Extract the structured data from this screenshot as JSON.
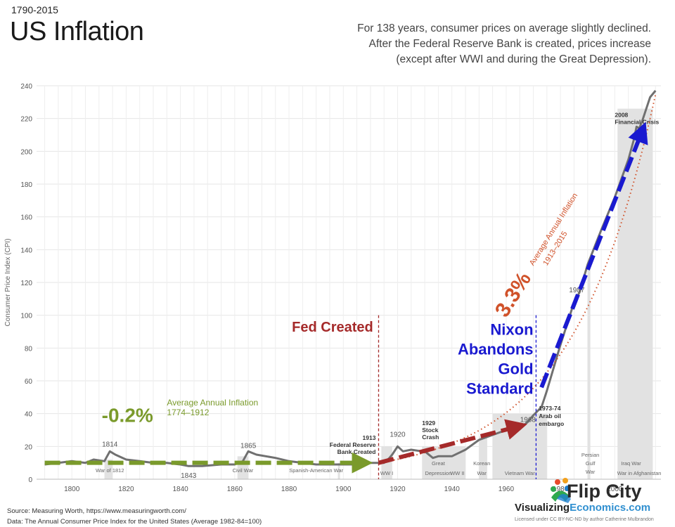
{
  "header": {
    "period": "1790-2015",
    "title": "US Inflation",
    "subtitle_lines": [
      "For 138 years, consumer prices on average slightly declined.",
      "After the Federal Reserve Bank is created, prices increase",
      "(except after WWI and during the Great Depression)."
    ]
  },
  "footer": {
    "source": "Source: Measuring Worth, https://www.measuringworth.com/",
    "data": "Data: The Annual Consumer Price Index for the United States (Average 1982-84=100)"
  },
  "brand": {
    "name": "Flip City",
    "site_prefix": "Visualizing",
    "site_suffix": "Economics.com",
    "license": "Licensed under CC BY-NC-ND by author Catherine Mulbrandon"
  },
  "colors": {
    "line": "#707070",
    "fill": "#d6d6d6",
    "green": "#7a9a2b",
    "red": "#a52a2a",
    "blue": "#1a1ad0",
    "orange": "#d0522a"
  },
  "chart_data": {
    "type": "area",
    "ylabel": "Consumer Price Index (CPI)",
    "xlim": [
      1787,
      2017
    ],
    "ylim": [
      0,
      240
    ],
    "x_ticks": [
      1800,
      1820,
      1840,
      1860,
      1880,
      1900,
      1920,
      1940,
      1960,
      1980,
      2000
    ],
    "y_ticks": [
      0,
      20,
      40,
      60,
      80,
      100,
      120,
      140,
      160,
      180,
      200,
      220,
      240
    ],
    "grid": true,
    "series": [
      {
        "x": [
          1790,
          1795,
          1800,
          1805,
          1808,
          1812,
          1814,
          1816,
          1820,
          1825,
          1830,
          1835,
          1840,
          1843,
          1848,
          1855,
          1860,
          1863,
          1865,
          1868,
          1875,
          1880,
          1885,
          1890,
          1895,
          1900,
          1905,
          1910,
          1913,
          1915,
          1917,
          1918,
          1920,
          1922,
          1925,
          1929,
          1930,
          1933,
          1935,
          1940,
          1945,
          1950,
          1955,
          1960,
          1965,
          1968,
          1970,
          1973,
          1974,
          1975,
          1980,
          1985,
          1987,
          1990,
          1995,
          2000,
          2005,
          2007,
          2008,
          2009,
          2010,
          2013,
          2015
        ],
        "y": [
          9,
          10,
          11,
          10,
          12,
          11,
          17,
          15,
          12,
          11,
          10,
          10,
          9,
          8,
          8,
          9,
          9,
          11,
          17,
          15,
          13,
          11,
          10,
          9,
          9,
          9,
          9,
          10,
          10,
          10,
          13,
          15,
          20,
          17,
          18,
          17,
          17,
          13,
          14,
          14,
          18,
          24,
          27,
          30,
          31,
          35,
          39,
          44,
          49,
          54,
          82,
          108,
          114,
          131,
          152,
          172,
          195,
          207,
          215,
          214,
          218,
          233,
          237
        ]
      }
    ],
    "annotations": [
      {
        "label": "1814",
        "x": 1814
      },
      {
        "label": "1843",
        "x": 1843
      },
      {
        "label": "1865",
        "x": 1865
      },
      {
        "label": "1913 Federal Reserve Bank Created",
        "x": 1913
      },
      {
        "label": "1920",
        "x": 1920
      },
      {
        "label": "1929 Stock Crash",
        "x": 1929
      },
      {
        "label": "1968",
        "x": 1968
      },
      {
        "label": "1973-74 Arab oil embargo",
        "x": 1973
      },
      {
        "label": "1987",
        "x": 1987
      },
      {
        "label": "2008 Financial Crisis",
        "x": 2008
      }
    ],
    "events": [
      {
        "label": "War of 1812",
        "from": 1812,
        "to": 1815
      },
      {
        "label": "Civil War",
        "from": 1861,
        "to": 1865
      },
      {
        "label": "Spanish-American War",
        "from": 1898,
        "to": 1898
      },
      {
        "label": "WW I",
        "from": 1914,
        "to": 1918
      },
      {
        "label": "Great Depression",
        "from": 1929,
        "to": 1939
      },
      {
        "label": "WW II",
        "from": 1939,
        "to": 1945
      },
      {
        "label": "Korean War",
        "from": 1950,
        "to": 1953
      },
      {
        "label": "Vietnam War",
        "from": 1955,
        "to": 1975
      },
      {
        "label": "Persian Gulf War",
        "from": 1990,
        "to": 1991
      },
      {
        "label": "Iraq War War in Afghanistan",
        "from": 2001,
        "to": 2014
      }
    ],
    "callouts": {
      "pre_fed_rate": "-0.2%",
      "pre_fed_text": "Average Annual Inflation",
      "pre_fed_range": "1774–1912",
      "post_fed_rate": "3.3%",
      "post_fed_text": "Average Annual Inflation",
      "post_fed_range": "1913–2015",
      "fed_created": "Fed Created",
      "nixon": [
        "Nixon",
        "Abandons",
        "Gold",
        "Standard"
      ]
    }
  }
}
